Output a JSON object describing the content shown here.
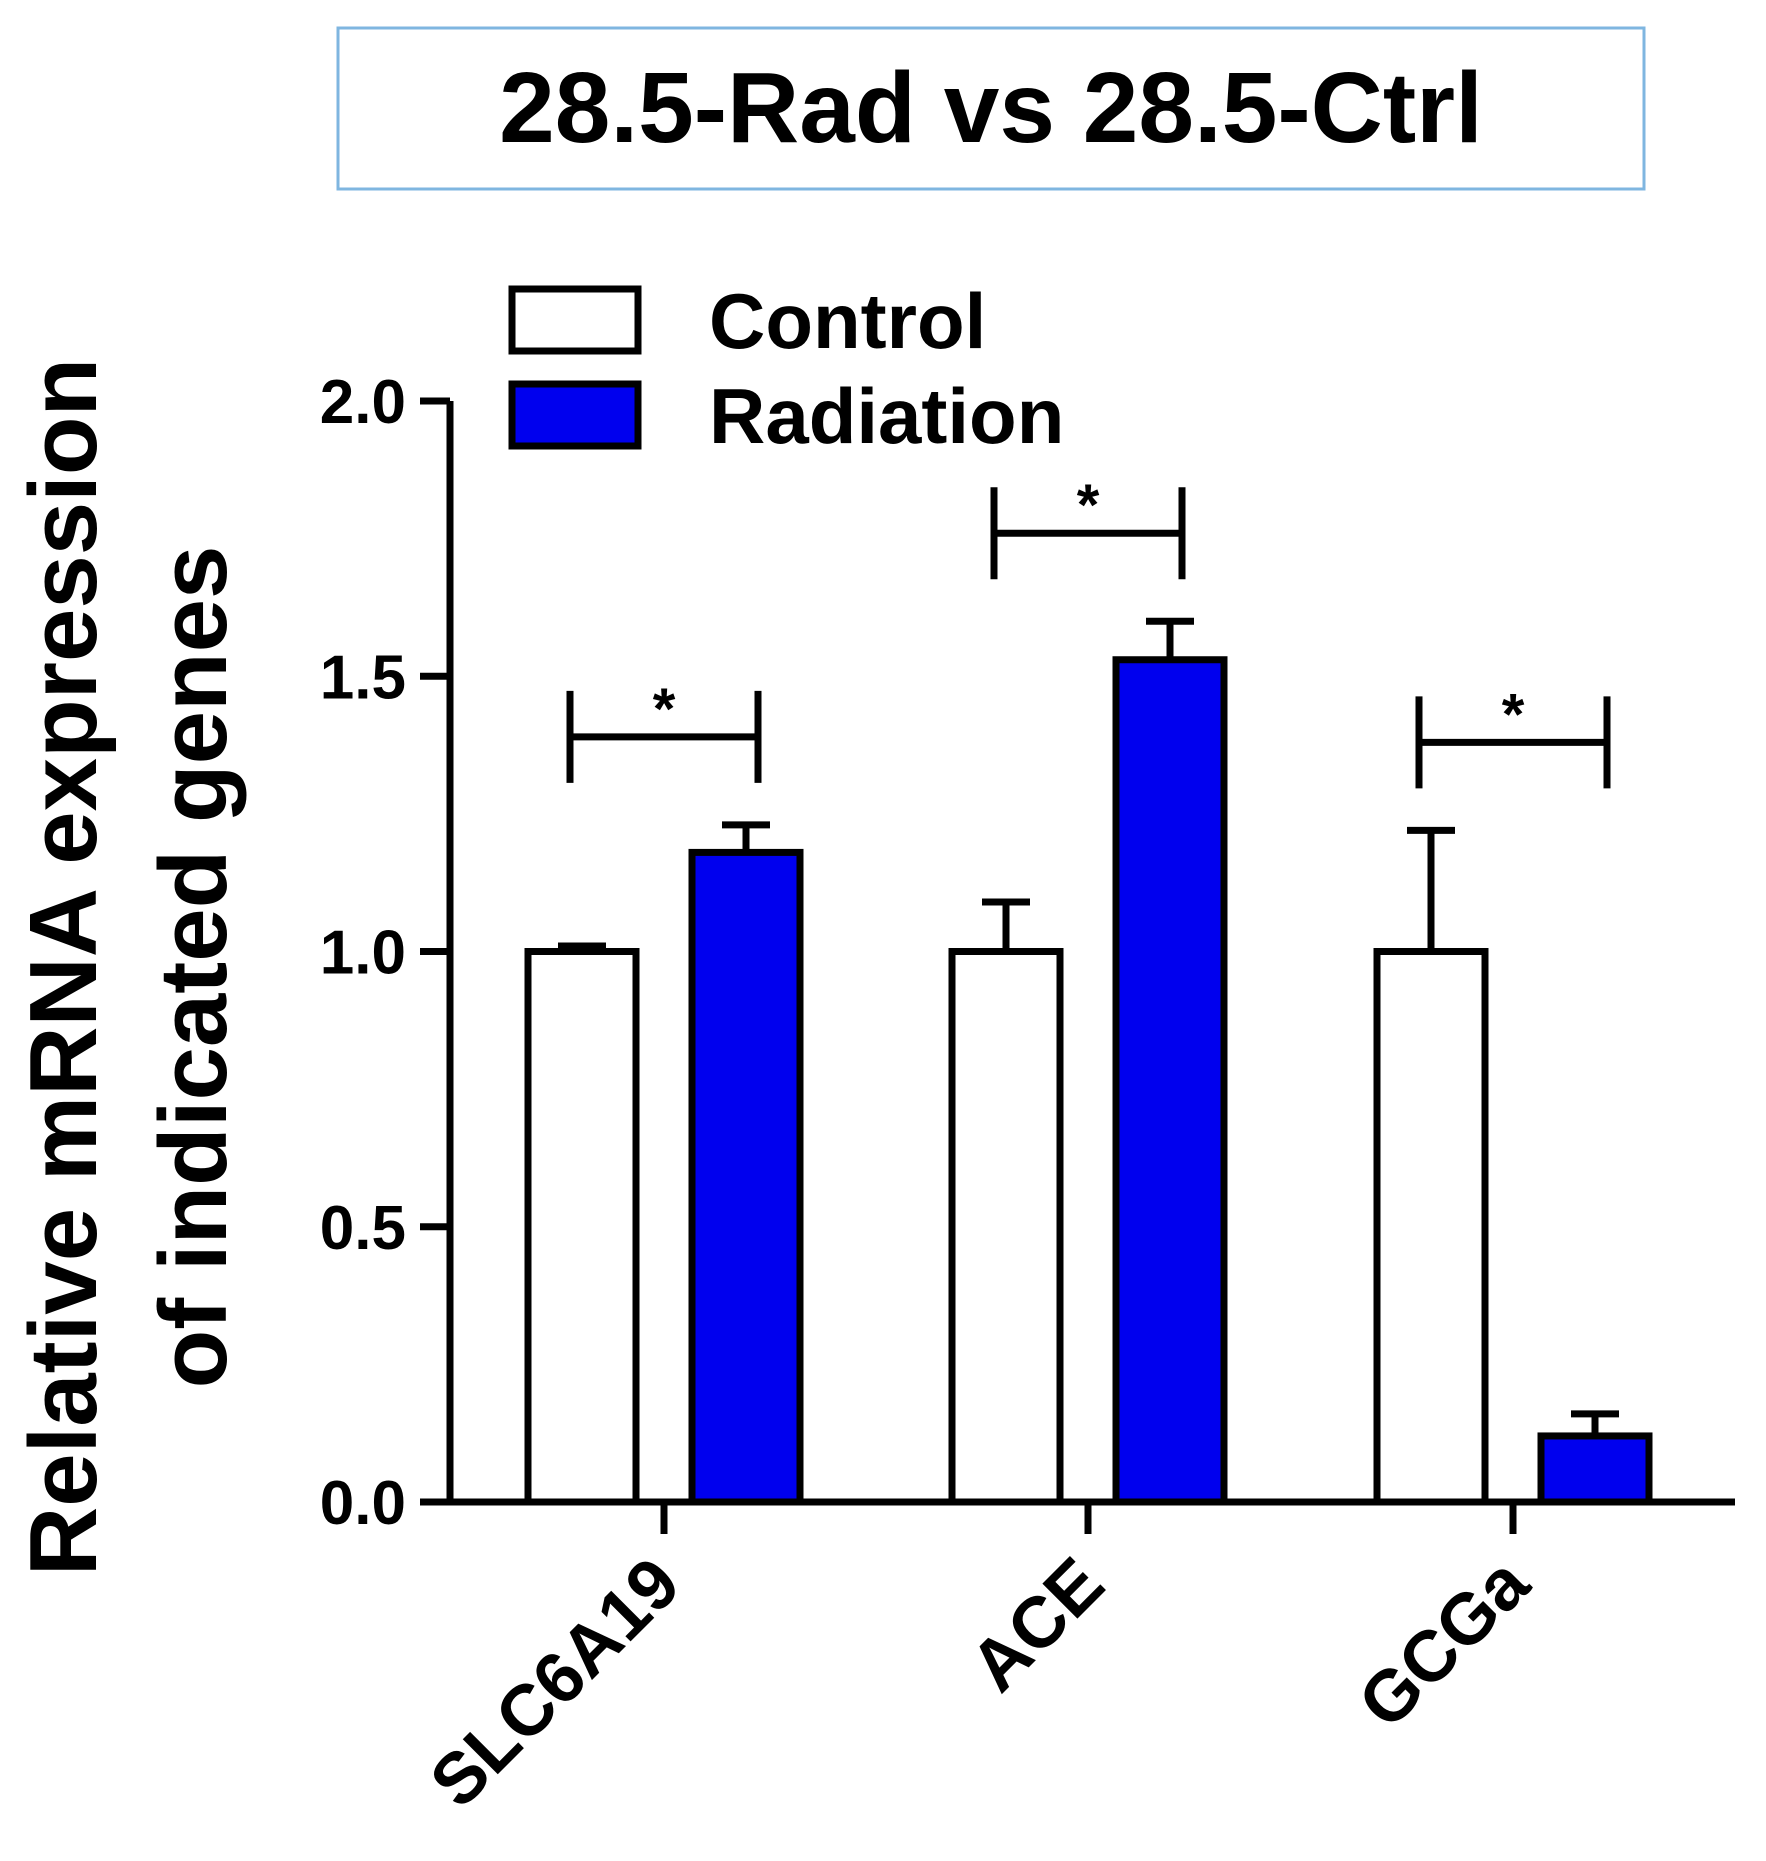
{
  "chart_data": {
    "type": "bar",
    "title": "28.5-Rad vs 28.5-Ctrl",
    "xlabel": "",
    "ylabel_lines": [
      "Relative mRNA expression",
      "of indicated genes"
    ],
    "ylim": [
      0,
      2.0
    ],
    "yticks": [
      "0.0",
      "0.5",
      "1.0",
      "1.5",
      "2.0"
    ],
    "categories": [
      "SLC6A19",
      "ACE",
      "GCGa"
    ],
    "series": [
      {
        "name": "Control",
        "color": "#ffffff",
        "values": [
          1.0,
          1.0,
          1.0
        ],
        "errors": [
          0.01,
          0.09,
          0.22
        ]
      },
      {
        "name": "Radiation",
        "color": "#0000ee",
        "values": [
          1.18,
          1.53,
          0.12
        ],
        "errors": [
          0.05,
          0.07,
          0.04
        ]
      }
    ],
    "significance": [
      {
        "category": "SLC6A19",
        "label": "*"
      },
      {
        "category": "ACE",
        "label": "*"
      },
      {
        "category": "GCGa",
        "label": "*"
      }
    ],
    "legend": [
      "Control",
      "Radiation"
    ]
  }
}
